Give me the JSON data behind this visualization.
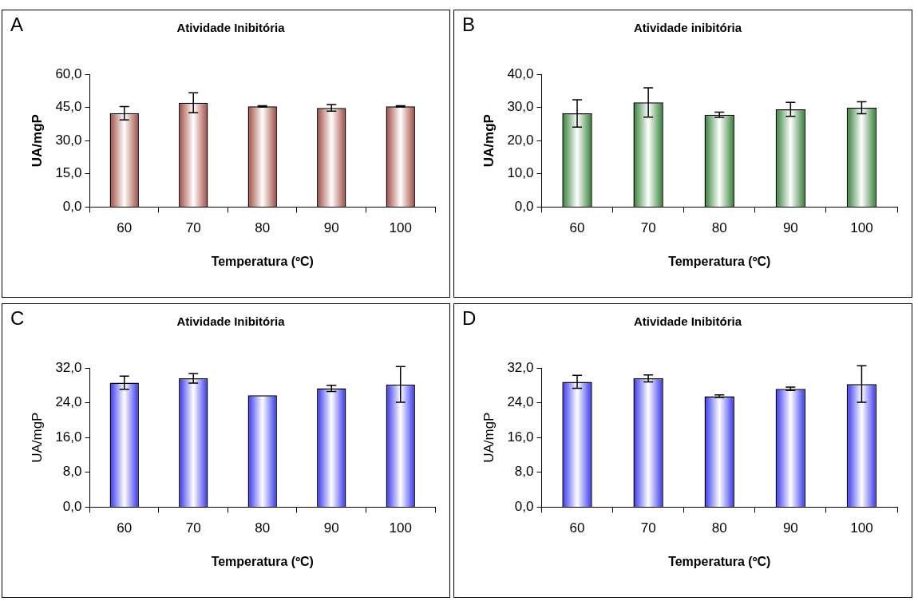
{
  "chart_data": [
    {
      "type": "bar",
      "title": "Atividade Inibitória",
      "xlabel": "Temperatura (ºC)",
      "ylabel": "UA/mgP",
      "annotations": [
        "A"
      ],
      "categories": [
        "60",
        "70",
        "80",
        "90",
        "100"
      ],
      "color": "#a0483c",
      "values": [
        42.4,
        47.1,
        45.5,
        44.8,
        45.5
      ],
      "errors": [
        3,
        4.5,
        0.3,
        1.5,
        0.3
      ],
      "ylim": [
        0,
        60
      ],
      "yticks": [
        {
          "value": 0,
          "label": "0,0"
        },
        {
          "value": 15,
          "label": "15,0"
        },
        {
          "value": 30,
          "label": "30,0"
        },
        {
          "value": 45,
          "label": "45,0"
        },
        {
          "value": 60,
          "label": "60,0"
        }
      ],
      "grid": false,
      "legend": false
    },
    {
      "type": "bar",
      "title": "Atividade inibitória",
      "xlabel": "Temperatura (ºC)",
      "ylabel": "UA/mgP",
      "annotations": [
        "B"
      ],
      "categories": [
        "60",
        "70",
        "80",
        "90",
        "100"
      ],
      "color": "#2e7d32",
      "values": [
        28.2,
        31.5,
        27.8,
        29.4,
        29.9
      ],
      "errors": [
        4.1,
        4.4,
        0.8,
        2.1,
        1.8
      ],
      "ylim": [
        0,
        40
      ],
      "yticks": [
        {
          "value": 0,
          "label": "0,0"
        },
        {
          "value": 10,
          "label": "10,0"
        },
        {
          "value": 20,
          "label": "20,0"
        },
        {
          "value": 30,
          "label": "30,0"
        },
        {
          "value": 40,
          "label": "40,0"
        }
      ],
      "grid": false,
      "legend": false
    },
    {
      "type": "bar",
      "title": "Atividade Inibitória",
      "xlabel": "Temperatura (ºC)",
      "ylabel": "UA/mgP",
      "annotations": [
        "C"
      ],
      "categories": [
        "60",
        "70",
        "80",
        "90",
        "100"
      ],
      "color": "#3333ee",
      "values": [
        28.6,
        29.6,
        25.7,
        27.3,
        28.2
      ],
      "errors": [
        1.5,
        1.1,
        null,
        0.7,
        4.1
      ],
      "ylim": [
        0,
        32
      ],
      "yticks": [
        {
          "value": 0,
          "label": "0,0"
        },
        {
          "value": 8,
          "label": "8,0"
        },
        {
          "value": 16,
          "label": "16,0"
        },
        {
          "value": 24,
          "label": "24,0"
        },
        {
          "value": 32,
          "label": "32,0"
        }
      ],
      "grid": false,
      "legend": false
    },
    {
      "type": "bar",
      "title": "Atividade Inibitória",
      "xlabel": "Temperatura (ºC)",
      "ylabel": "UA/mgP",
      "annotations": [
        "D"
      ],
      "categories": [
        "60",
        "70",
        "80",
        "90",
        "100"
      ],
      "color": "#3333ee",
      "values": [
        28.8,
        29.6,
        25.5,
        27.2,
        28.3
      ],
      "errors": [
        1.5,
        0.8,
        0.3,
        0.4,
        4.2
      ],
      "ylim": [
        0,
        32
      ],
      "yticks": [
        {
          "value": 0,
          "label": "0,0"
        },
        {
          "value": 8,
          "label": "8,0"
        },
        {
          "value": 16,
          "label": "16,0"
        },
        {
          "value": 24,
          "label": "24,0"
        },
        {
          "value": 32,
          "label": "32,0"
        }
      ],
      "grid": false,
      "legend": false
    }
  ]
}
